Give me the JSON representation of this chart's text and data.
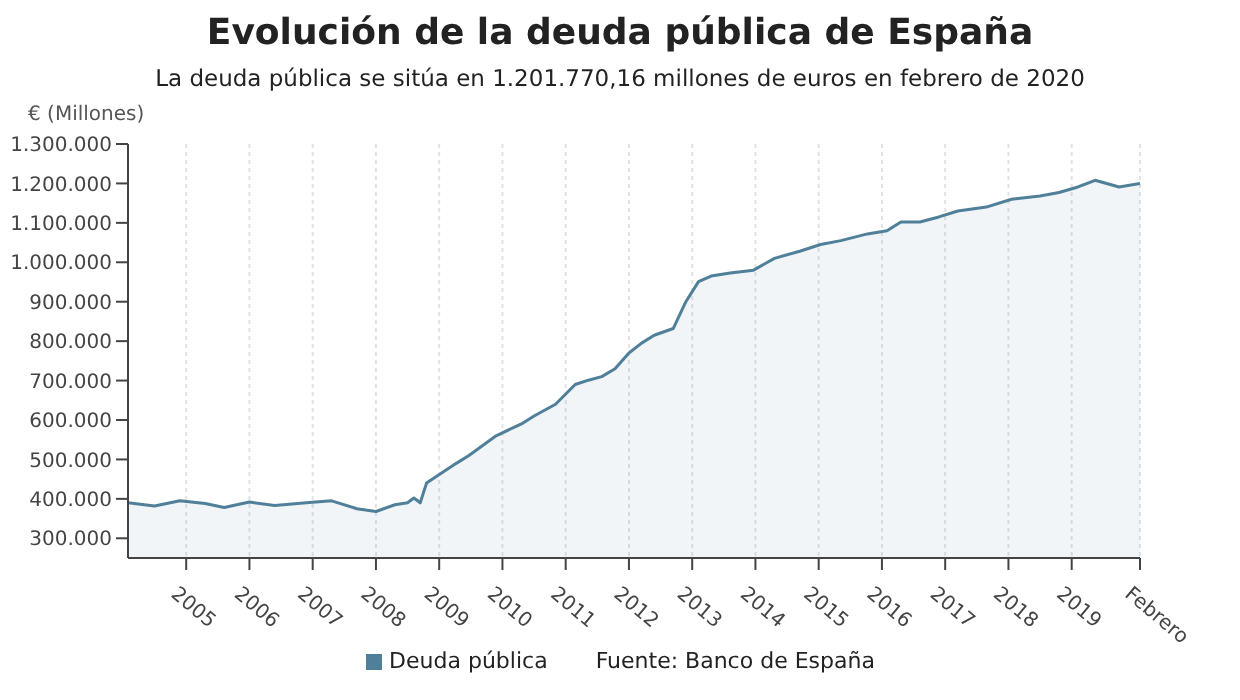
{
  "chart_data": {
    "type": "area",
    "title": "Evolución de la deuda pública de España",
    "subtitle": "La deuda pública se sitúa en 1.201.770,16 millones de euros en febrero de 2020",
    "ylabel": "€ (Millones)",
    "x": [
      2004.08,
      2004.5,
      2004.9,
      2005.3,
      2005.6,
      2006.0,
      2006.4,
      2006.9,
      2007.3,
      2007.7,
      2008.0,
      2008.3,
      2008.5,
      2008.6,
      2008.7,
      2008.8,
      2009.27,
      2009.47,
      2009.9,
      2010.3,
      2010.5,
      2010.84,
      2011.15,
      2011.36,
      2011.57,
      2011.78,
      2012.0,
      2012.2,
      2012.4,
      2012.7,
      2012.9,
      2013.1,
      2013.3,
      2013.6,
      2013.97,
      2014.3,
      2014.7,
      2015.03,
      2015.35,
      2015.77,
      2016.08,
      2016.3,
      2016.6,
      2016.9,
      2017.2,
      2017.65,
      2018.05,
      2018.5,
      2018.8,
      2019.1,
      2019.37,
      2019.75,
      2020.08
    ],
    "series": [
      {
        "name": "Deuda pública",
        "color": "#4f7f99",
        "values": [
          390000,
          382000,
          395000,
          388000,
          378000,
          392000,
          383000,
          390000,
          395000,
          375000,
          368000,
          385000,
          390000,
          402000,
          390000,
          440000,
          490000,
          510000,
          560000,
          590000,
          610000,
          640000,
          690000,
          701000,
          710000,
          730000,
          770000,
          795000,
          815000,
          832000,
          900000,
          951000,
          965000,
          973000,
          980000,
          1010000,
          1028000,
          1045000,
          1055000,
          1072000,
          1080000,
          1102000,
          1102000,
          1115000,
          1130000,
          1140000,
          1160000,
          1168000,
          1177000,
          1191000,
          1208000,
          1191000,
          1200000
        ]
      }
    ],
    "xlim": [
      2004.08,
      2020.08
    ],
    "xticks": [
      2005,
      2006,
      2007,
      2008,
      2009,
      2010,
      2011,
      2012,
      2013,
      2014,
      2015,
      2016,
      2017,
      2018,
      2019,
      {
        "value": 2020.08,
        "label": "Febrero"
      }
    ],
    "ylim": [
      250000,
      1300000
    ],
    "yticks": [
      {
        "value": 300000,
        "label": "300.000"
      },
      {
        "value": 400000,
        "label": "400.000"
      },
      {
        "value": 500000,
        "label": "500.000"
      },
      {
        "value": 600000,
        "label": "600.000"
      },
      {
        "value": 700000,
        "label": "700.000"
      },
      {
        "value": 800000,
        "label": "800.000"
      },
      {
        "value": 900000,
        "label": "900.000"
      },
      {
        "value": 1000000,
        "label": "1.000.000"
      },
      {
        "value": 1100000,
        "label": "1.100.000"
      },
      {
        "value": 1200000,
        "label": "1.200.000"
      },
      {
        "value": 1300000,
        "label": "1.300.000"
      }
    ],
    "grid": true,
    "legend": "bottom",
    "annotations": [
      "Fuente: Banco de España"
    ]
  }
}
